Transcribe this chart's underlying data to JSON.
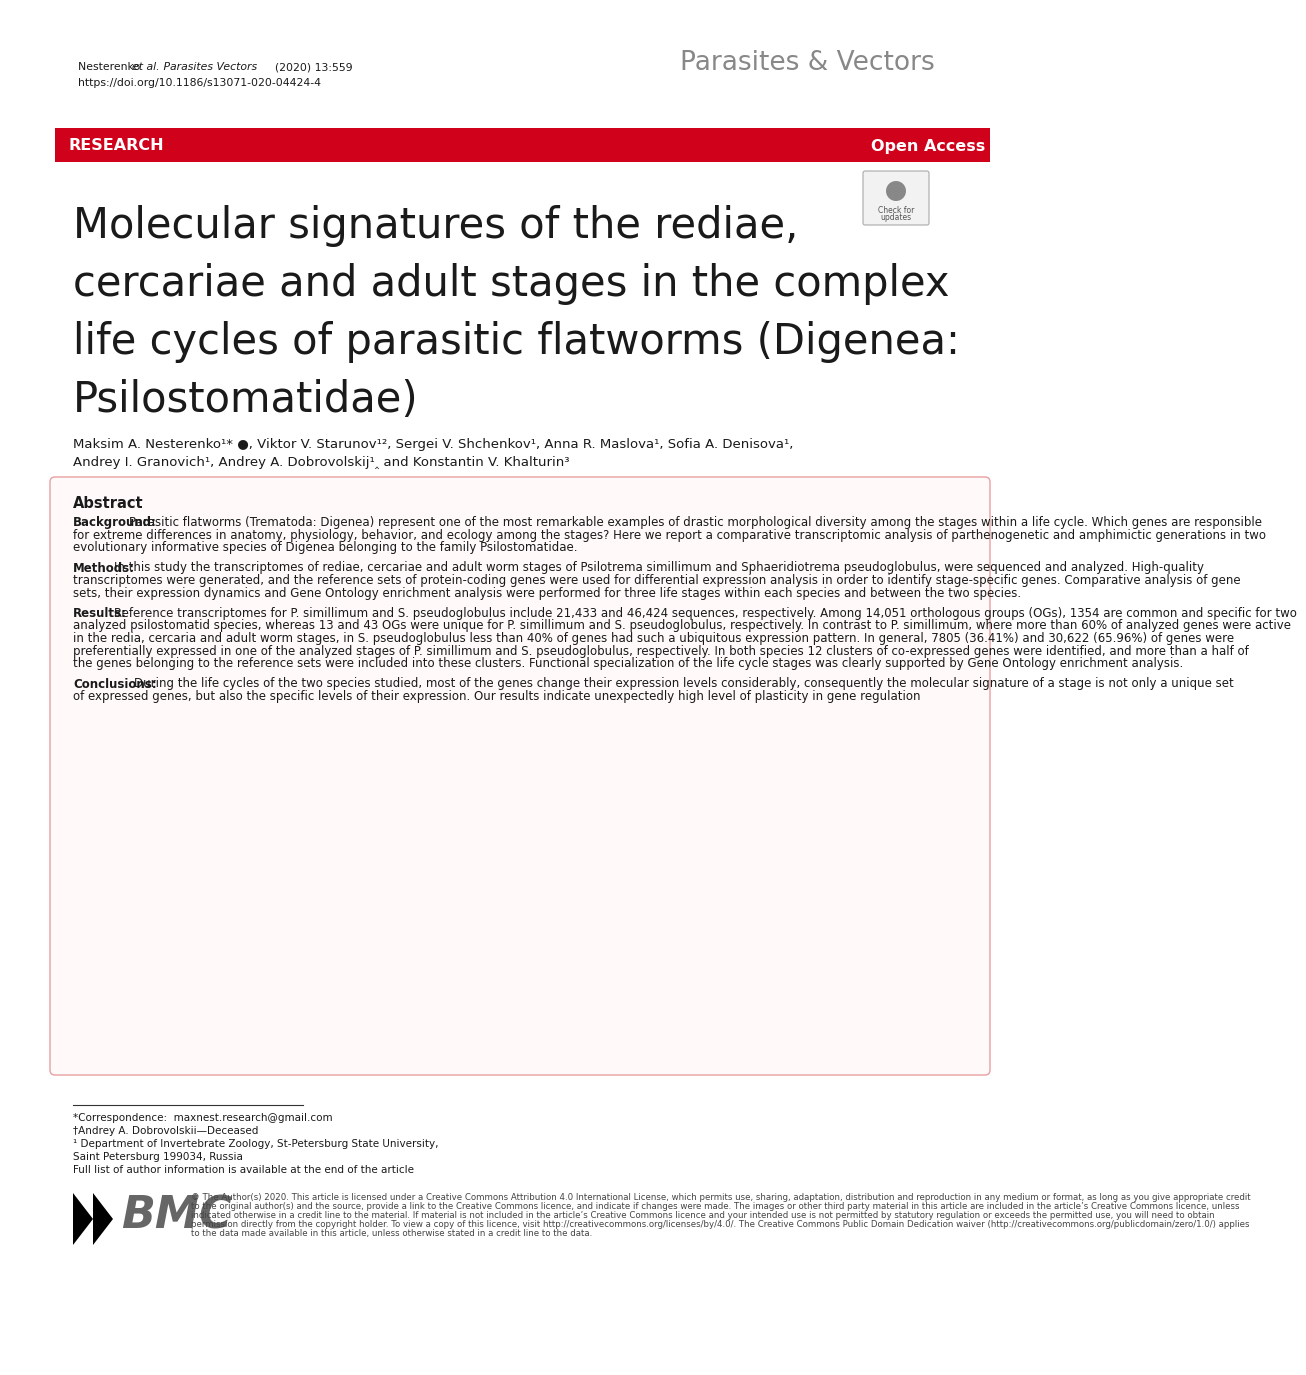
{
  "bg_color": "#ffffff",
  "banner_color": "#d0021b",
  "abstract_border_color": "#e8a0a0",
  "abstract_bg_color": "#fff9f9",
  "header_gray": "#888888",
  "text_dark": "#1a1a1a",
  "text_medium": "#444444",
  "header_left_normal": "Nesterenko ",
  "header_left_italic1": "et al.",
  "header_left_italic2": " Parasites Vectors",
  "header_left_end": "        (2020) 13:559",
  "header_left_line2": "https://doi.org/10.1186/s13071-020-04424-4",
  "header_right": "Parasites & Vectors",
  "research_banner_text": "RESEARCH",
  "open_access_text": "Open Access",
  "title_line1": "Molecular signatures of the rediae,",
  "title_line2": "cercariae and adult stages in the complex",
  "title_line3": "life cycles of parasitic flatworms (Digenea:",
  "title_line4": "Psilostomatidae)",
  "authors_line1": "Maksim A. Nesterenko¹* ●, Viktor V. Starunov¹², Sergei V. Shchenkov¹, Anna R. Maslova¹, Sofia A. Denisova¹,",
  "authors_line2": "Andrey I. Granovich¹, Andrey A. Dobrovolskij¹‸ and Konstantin V. Khalturin³",
  "abstract_title": "Abstract",
  "abstract_background_label": "Background:",
  "abstract_background_text": "  Parasitic flatworms (Trematoda: Digenea) represent one of the most remarkable examples of drastic morphological diversity among the stages within a life cycle. Which genes are responsible for extreme differences in anatomy, physiology, behavior, and ecology among the stages? Here we report a comparative transcriptomic analysis of parthenogenetic and amphimictic generations in two evolutionary informative species of Digenea belonging to the family Psilostomatidae.",
  "abstract_methods_label": "Methods:",
  "abstract_methods_text": "  In this study the transcriptomes of rediae, cercariae and adult worm stages of Psilotrema simillimum and Sphaeridiotrema pseudoglobulus, were sequenced and analyzed. High-quality transcriptomes were generated, and the reference sets of protein-coding genes were used for differential expression analysis in order to identify stage-specific genes. Comparative analysis of gene sets, their expression dynamics and Gene Ontology enrichment analysis were performed for three life stages within each species and between the two species.",
  "abstract_results_label": "Results:",
  "abstract_results_text": "  Reference transcriptomes for P. simillimum and S. pseudoglobulus include 21,433 and 46,424 sequences, respectively. Among 14,051 orthologous groups (OGs), 1354 are common and specific for two analyzed psilostomatid species, whereas 13 and 43 OGs were unique for P. simillimum and S. pseudoglobulus, respectively. In contrast to P. simillimum, where more than 60% of analyzed genes were active in the redia, cercaria and adult worm stages, in S. pseudoglobulus less than 40% of genes had such a ubiquitous expression pattern. In general, 7805 (36.41%) and 30,622 (65.96%) of genes were preferentially expressed in one of the analyzed stages of P. simillimum and S. pseudoglobulus, respectively. In both species 12 clusters of co-expressed genes were identified, and more than a half of the genes belonging to the reference sets were included into these clusters. Functional specialization of the life cycle stages was clearly supported by Gene Ontology enrichment analysis.",
  "abstract_conclusions_label": "Conclusions:",
  "abstract_conclusions_text": "  During the life cycles of the two species studied, most of the genes change their expression levels considerably, consequently the molecular signature of a stage is not only a unique set of expressed genes, but also the specific levels of their expression. Our results indicate unexpectedly high level of plasticity in gene regulation",
  "footnote_line1": "*Correspondence:  maxnest.research@gmail.com",
  "footnote_line2": "†Andrey A. Dobrovolskii—Deceased",
  "footnote_line3": "¹ Department of Invertebrate Zoology, St-Petersburg State University,",
  "footnote_line4": "Saint Petersburg 199034, Russia",
  "footnote_line5": "Full list of author information is available at the end of the article",
  "copyright_text": "© The Author(s) 2020. This article is licensed under a Creative Commons Attribution 4.0 International License, which permits use, sharing, adaptation, distribution and reproduction in any medium or format, as long as you give appropriate credit to the original author(s) and the source, provide a link to the Creative Commons licence, and indicate if changes were made. The images or other third party material in this article are included in the article’s Creative Commons licence, unless indicated otherwise in a credit line to the material. If material is not included in the article’s Creative Commons licence and your intended use is not permitted by statutory regulation or exceeds the permitted use, you will need to obtain permission directly from the copyright holder. To view a copy of this licence, visit http://creativecommons.org/licenses/by/4.0/. The Creative Commons Public Domain Dedication waiver (http://creativecommons.org/publicdomain/zero/1.0/) applies to the data made available in this article, unless otherwise stated in a credit line to the data."
}
